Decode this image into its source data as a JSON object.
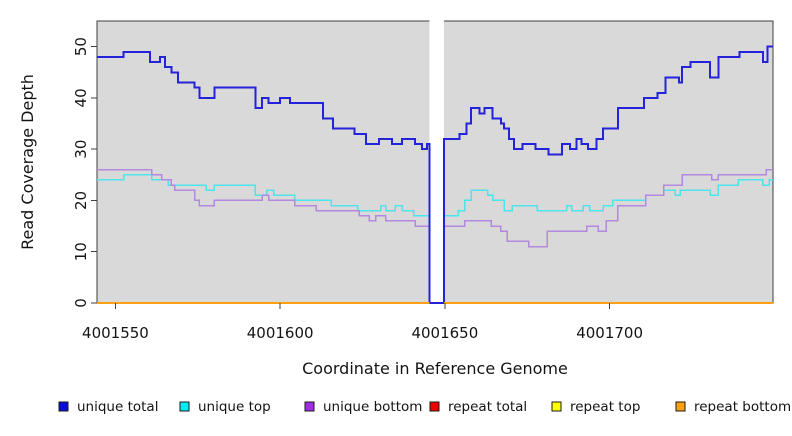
{
  "chart_data": {
    "type": "step-line",
    "title": "",
    "xlabel": "Coordinate in Reference Genome",
    "ylabel": "Read Coverage Depth",
    "xlim": [
      4001544.4,
      4001749.6
    ],
    "ylim": [
      0,
      55
    ],
    "x_ticks": [
      4001550,
      4001600,
      4001650,
      4001700
    ],
    "y_ticks": [
      0,
      10,
      20,
      30,
      40,
      50
    ],
    "grid": false,
    "legend_position": "bottom",
    "plot_bg_color": "#d9d9d9",
    "frame_color": "#3f3f3f",
    "text_color": "#141414",
    "gap_band": {
      "x1": 4001645.3,
      "x2": 4001649.7,
      "color": "#ffffff"
    },
    "series": [
      {
        "name": "unique total",
        "line_color": "#2323dc",
        "swatch_color": "#0b0bdb",
        "line_width": 2,
        "steps": [
          [
            4001544.4,
            48
          ],
          [
            4001552.5,
            49
          ],
          [
            4001560.5,
            47
          ],
          [
            4001563.5,
            48
          ],
          [
            4001565,
            46
          ],
          [
            4001567,
            45
          ],
          [
            4001569,
            43
          ],
          [
            4001574,
            42
          ],
          [
            4001575.5,
            40
          ],
          [
            4001580,
            42
          ],
          [
            4001592.5,
            38
          ],
          [
            4001594.5,
            40
          ],
          [
            4001596.5,
            39
          ],
          [
            4001600,
            40
          ],
          [
            4001603,
            39
          ],
          [
            4001613,
            36
          ],
          [
            4001616,
            34
          ],
          [
            4001622.5,
            33
          ],
          [
            4001626,
            31
          ],
          [
            4001630,
            32
          ],
          [
            4001634,
            31
          ],
          [
            4001637,
            32
          ],
          [
            4001641,
            31
          ],
          [
            4001643,
            30
          ],
          [
            4001644.5,
            31
          ],
          [
            4001645.3,
            0
          ],
          [
            4001649.7,
            32
          ],
          [
            4001654.5,
            33
          ],
          [
            4001656.5,
            35
          ],
          [
            4001658,
            38
          ],
          [
            4001660.5,
            37
          ],
          [
            4001662,
            38
          ],
          [
            4001664.5,
            36
          ],
          [
            4001667,
            35
          ],
          [
            4001668,
            34
          ],
          [
            4001669.5,
            32
          ],
          [
            4001671,
            30
          ],
          [
            4001673.5,
            31
          ],
          [
            4001677.5,
            30
          ],
          [
            4001681.5,
            29
          ],
          [
            4001685.5,
            31
          ],
          [
            4001688,
            30
          ],
          [
            4001690,
            32
          ],
          [
            4001691.5,
            31
          ],
          [
            4001693.5,
            30
          ],
          [
            4001696,
            32
          ],
          [
            4001698,
            34
          ],
          [
            4001702.5,
            38
          ],
          [
            4001710.5,
            40
          ],
          [
            4001714.5,
            41
          ],
          [
            4001717,
            44
          ],
          [
            4001721,
            43
          ],
          [
            4001722,
            46
          ],
          [
            4001724.5,
            47
          ],
          [
            4001730.5,
            44
          ],
          [
            4001733,
            48
          ],
          [
            4001739.5,
            49
          ],
          [
            4001746.5,
            47
          ],
          [
            4001748,
            50
          ]
        ]
      },
      {
        "name": "unique top",
        "line_color": "#4fe3ea",
        "swatch_color": "#00ecf7",
        "line_width": 1.5,
        "steps": [
          [
            4001544.4,
            24
          ],
          [
            4001552.5,
            25
          ],
          [
            4001561,
            24
          ],
          [
            4001566,
            23
          ],
          [
            4001577.5,
            22
          ],
          [
            4001580,
            23
          ],
          [
            4001592.5,
            21
          ],
          [
            4001596,
            22
          ],
          [
            4001598,
            21
          ],
          [
            4001604.5,
            20
          ],
          [
            4001615.5,
            19
          ],
          [
            4001623.5,
            18
          ],
          [
            4001630.5,
            19
          ],
          [
            4001632,
            18
          ],
          [
            4001635,
            19
          ],
          [
            4001637,
            18
          ],
          [
            4001640.5,
            17
          ],
          [
            4001645.3,
            0
          ],
          [
            4001649.7,
            17
          ],
          [
            4001654,
            18
          ],
          [
            4001656,
            20
          ],
          [
            4001658,
            22
          ],
          [
            4001663,
            21
          ],
          [
            4001664.5,
            20
          ],
          [
            4001668,
            18
          ],
          [
            4001670.5,
            19
          ],
          [
            4001678,
            18
          ],
          [
            4001687,
            19
          ],
          [
            4001688.5,
            18
          ],
          [
            4001692,
            19
          ],
          [
            4001694,
            18
          ],
          [
            4001698,
            19
          ],
          [
            4001701,
            20
          ],
          [
            4001711,
            21
          ],
          [
            4001716.5,
            22
          ],
          [
            4001720,
            21
          ],
          [
            4001721.5,
            22
          ],
          [
            4001730.5,
            21
          ],
          [
            4001733,
            23
          ],
          [
            4001739,
            24
          ],
          [
            4001746.5,
            23
          ],
          [
            4001748.5,
            24
          ]
        ]
      },
      {
        "name": "unique bottom",
        "line_color": "#b488de",
        "swatch_color": "#a22ce6",
        "line_width": 1.5,
        "steps": [
          [
            4001544.4,
            26
          ],
          [
            4001561,
            25
          ],
          [
            4001564,
            24
          ],
          [
            4001567,
            23
          ],
          [
            4001568,
            22
          ],
          [
            4001574,
            20
          ],
          [
            4001575.5,
            19
          ],
          [
            4001580,
            20
          ],
          [
            4001594.5,
            21
          ],
          [
            4001596.5,
            20
          ],
          [
            4001604.5,
            19
          ],
          [
            4001611,
            18
          ],
          [
            4001624,
            17
          ],
          [
            4001627,
            16
          ],
          [
            4001629,
            17
          ],
          [
            4001632,
            16
          ],
          [
            4001641,
            15
          ],
          [
            4001645.3,
            0
          ],
          [
            4001649.7,
            15
          ],
          [
            4001656,
            16
          ],
          [
            4001664,
            15
          ],
          [
            4001667,
            14
          ],
          [
            4001669,
            12
          ],
          [
            4001675.5,
            11
          ],
          [
            4001681,
            14
          ],
          [
            4001693,
            15
          ],
          [
            4001696.5,
            14
          ],
          [
            4001699,
            16
          ],
          [
            4001702.5,
            19
          ],
          [
            4001711,
            21
          ],
          [
            4001716.5,
            23
          ],
          [
            4001722,
            25
          ],
          [
            4001731,
            24
          ],
          [
            4001733,
            25
          ],
          [
            4001747.5,
            26
          ]
        ]
      },
      {
        "name": "repeat total",
        "line_color": "#e00000",
        "swatch_color": "#ee0000",
        "line_width": 1.4,
        "value": 0,
        "segments": [
          [
            4001544.4,
            4001645.3
          ],
          [
            4001649.7,
            4001749.6
          ]
        ]
      },
      {
        "name": "repeat top",
        "line_color": "#f2f200",
        "swatch_color": "#fdfd00",
        "line_width": 1.4,
        "value": 0,
        "segments": [
          [
            4001544.4,
            4001645.3
          ],
          [
            4001649.7,
            4001749.6
          ]
        ]
      },
      {
        "name": "repeat bottom",
        "line_color": "#ffa013",
        "swatch_color": "#ffa013",
        "line_width": 1.6,
        "value": 0,
        "segments": [
          [
            4001544.4,
            4001645.3
          ],
          [
            4001649.7,
            4001749.6
          ]
        ]
      }
    ]
  }
}
